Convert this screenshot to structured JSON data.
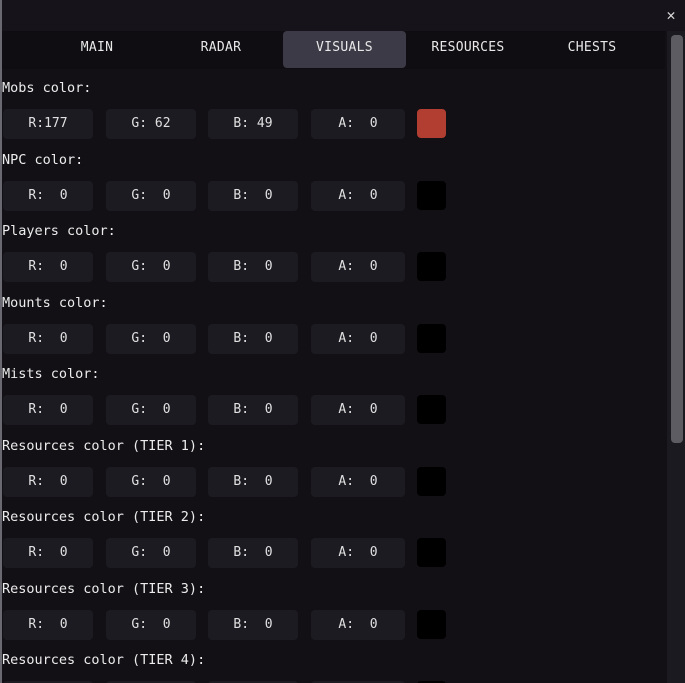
{
  "window": {
    "close_icon": "close-x-icon"
  },
  "tabs": [
    {
      "label": "MAIN",
      "active": false
    },
    {
      "label": "RADAR",
      "active": false
    },
    {
      "label": "VISUALS",
      "active": true
    },
    {
      "label": "RESOURCES",
      "active": false
    },
    {
      "label": "CHESTS",
      "active": false
    }
  ],
  "colors": [
    {
      "label": "Mobs color:",
      "r": "R:177",
      "g": "G: 62",
      "b": "B: 49",
      "a": "A:  0",
      "swatch": "#b13e31"
    },
    {
      "label": "NPC color:",
      "r": "R:  0",
      "g": "G:  0",
      "b": "B:  0",
      "a": "A:  0",
      "swatch": "#000000"
    },
    {
      "label": "Players color:",
      "r": "R:  0",
      "g": "G:  0",
      "b": "B:  0",
      "a": "A:  0",
      "swatch": "#000000"
    },
    {
      "label": "Mounts color:",
      "r": "R:  0",
      "g": "G:  0",
      "b": "B:  0",
      "a": "A:  0",
      "swatch": "#000000"
    },
    {
      "label": "Mists color:",
      "r": "R:  0",
      "g": "G:  0",
      "b": "B:  0",
      "a": "A:  0",
      "swatch": "#000000"
    },
    {
      "label": "Resources color (TIER 1):",
      "r": "R:  0",
      "g": "G:  0",
      "b": "B:  0",
      "a": "A:  0",
      "swatch": "#000000"
    },
    {
      "label": "Resources color (TIER 2):",
      "r": "R:  0",
      "g": "G:  0",
      "b": "B:  0",
      "a": "A:  0",
      "swatch": "#000000"
    },
    {
      "label": "Resources color (TIER 3):",
      "r": "R:  0",
      "g": "G:  0",
      "b": "B:  0",
      "a": "A:  0",
      "swatch": "#000000"
    },
    {
      "label": "Resources color (TIER 4):"
    }
  ]
}
